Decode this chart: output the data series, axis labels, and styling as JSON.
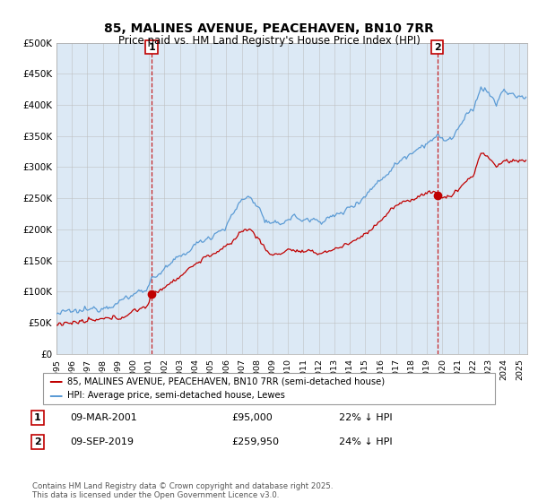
{
  "title": "85, MALINES AVENUE, PEACEHAVEN, BN10 7RR",
  "subtitle": "Price paid vs. HM Land Registry's House Price Index (HPI)",
  "ylabel_ticks": [
    "£0",
    "£50K",
    "£100K",
    "£150K",
    "£200K",
    "£250K",
    "£300K",
    "£350K",
    "£400K",
    "£450K",
    "£500K"
  ],
  "ytick_values": [
    0,
    50000,
    100000,
    150000,
    200000,
    250000,
    300000,
    350000,
    400000,
    450000,
    500000
  ],
  "legend_line1": "85, MALINES AVENUE, PEACEHAVEN, BN10 7RR (semi-detached house)",
  "legend_line2": "HPI: Average price, semi-detached house, Lewes",
  "marker1_date": "09-MAR-2001",
  "marker1_price": "£95,000",
  "marker1_hpi": "22% ↓ HPI",
  "marker1_year": 2001.19,
  "marker1_value": 95000,
  "marker2_date": "09-SEP-2019",
  "marker2_price": "£259,950",
  "marker2_hpi": "24% ↓ HPI",
  "marker2_year": 2019.67,
  "marker2_value": 259950,
  "footnote": "Contains HM Land Registry data © Crown copyright and database right 2025.\nThis data is licensed under the Open Government Licence v3.0.",
  "hpi_color": "#5b9bd5",
  "price_color": "#c00000",
  "marker_color": "#c00000",
  "bg_fill_color": "#dce9f5",
  "background_color": "#ffffff",
  "grid_color": "#bbbbbb",
  "xmin": 1995,
  "xmax": 2025.5
}
